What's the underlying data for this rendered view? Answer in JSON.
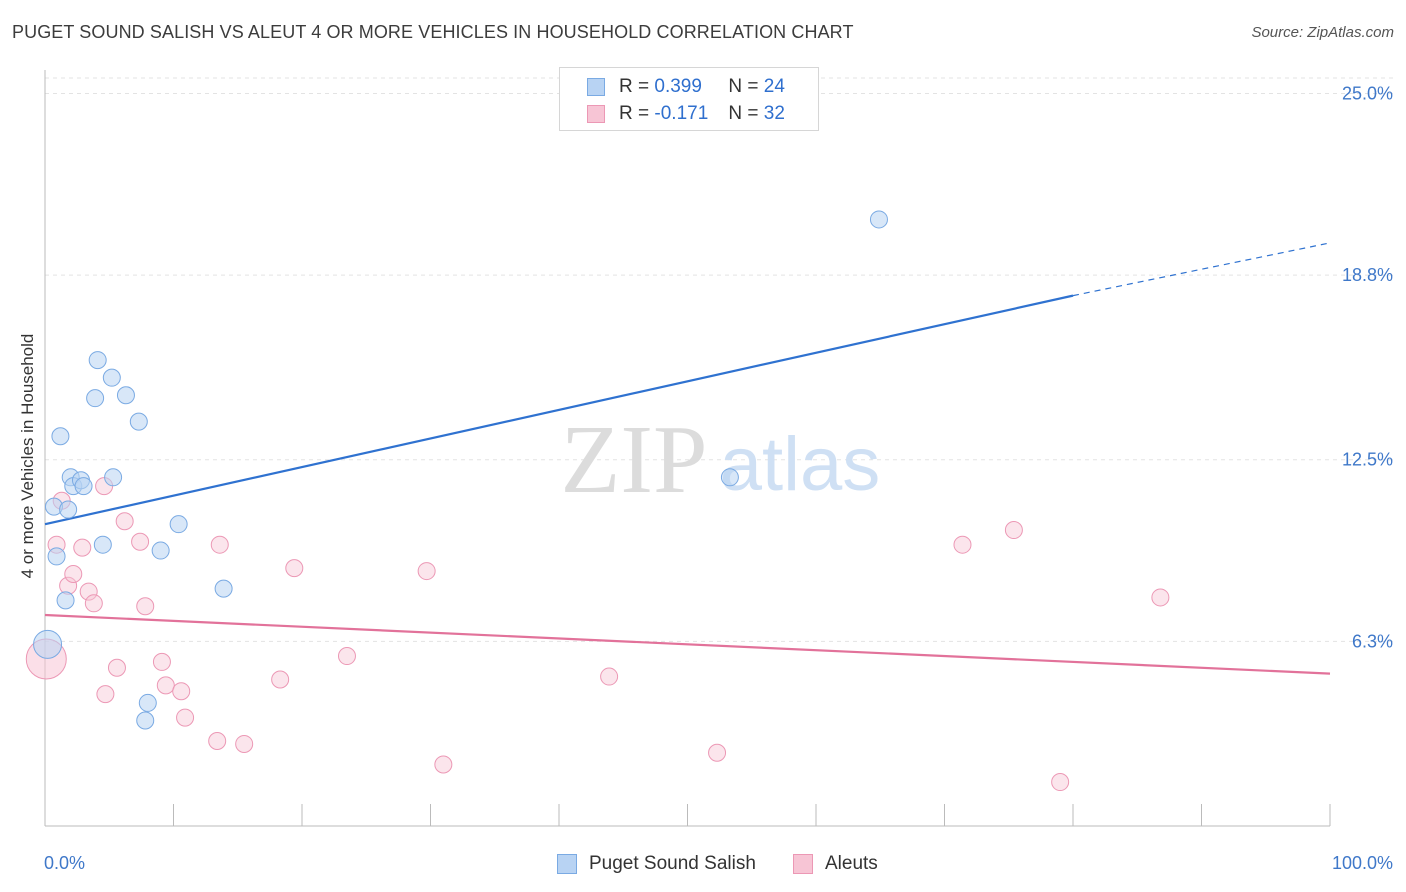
{
  "title": "PUGET SOUND SALISH VS ALEUT 4 OR MORE VEHICLES IN HOUSEHOLD CORRELATION CHART",
  "source": "Source: ZipAtlas.com",
  "watermark": {
    "zip": "ZIP",
    "atlas": "atlas"
  },
  "legend": {
    "r_label": "R =",
    "n_label": "N =",
    "series": [
      {
        "r": "0.399",
        "n": "24"
      },
      {
        "r": "-0.171",
        "n": "32"
      }
    ]
  },
  "colors": {
    "blue_fill": "#b8d3f3",
    "blue_stroke": "#7aaae3",
    "blue_line": "#2f72d0",
    "pink_fill": "#f7c5d5",
    "pink_stroke": "#ec98b5",
    "pink_line": "#e2729a",
    "axis_text": "#3f78c9",
    "grid": "#e3e3e3"
  },
  "chart_data": {
    "type": "scatter",
    "title": "PUGET SOUND SALISH VS ALEUT 4 OR MORE VEHICLES IN HOUSEHOLD CORRELATION CHART",
    "xlabel": "",
    "ylabel": "4 or more Vehicles in Household",
    "xlim": [
      0,
      100
    ],
    "ylim": [
      0,
      25.8
    ],
    "x_tick_labels": [
      "0.0%",
      "100.0%"
    ],
    "y_ticks": [
      6.3,
      12.5,
      18.8,
      25.0
    ],
    "y_tick_labels": [
      "6.3%",
      "12.5%",
      "18.8%",
      "25.0%"
    ],
    "grid": true,
    "legend_position": "top-center",
    "series": [
      {
        "name": "Puget Sound Salish",
        "points": [
          [
            0.2,
            6.2
          ],
          [
            0.7,
            10.9
          ],
          [
            0.9,
            9.2
          ],
          [
            1.2,
            13.3
          ],
          [
            1.6,
            7.7
          ],
          [
            1.8,
            10.8
          ],
          [
            2.0,
            11.9
          ],
          [
            2.2,
            11.6
          ],
          [
            2.8,
            11.8
          ],
          [
            3.0,
            11.6
          ],
          [
            4.1,
            15.9
          ],
          [
            3.9,
            14.6
          ],
          [
            4.5,
            9.6
          ],
          [
            5.2,
            15.3
          ],
          [
            5.3,
            11.9
          ],
          [
            6.3,
            14.7
          ],
          [
            7.3,
            13.8
          ],
          [
            7.8,
            3.6
          ],
          [
            8.0,
            4.2
          ],
          [
            9.0,
            9.4
          ],
          [
            10.4,
            10.3
          ],
          [
            13.9,
            8.1
          ],
          [
            53.3,
            11.9
          ],
          [
            64.9,
            20.7
          ]
        ],
        "trend": {
          "x0": 0,
          "y0": 10.3,
          "x1": 80,
          "y1": 18.1,
          "dashed_to_x": 100,
          "dashed_to_y": 19.9
        }
      },
      {
        "name": "Aleuts",
        "points": [
          [
            0.1,
            5.7
          ],
          [
            0.9,
            9.6
          ],
          [
            1.3,
            11.1
          ],
          [
            1.8,
            8.2
          ],
          [
            2.2,
            8.6
          ],
          [
            2.9,
            9.5
          ],
          [
            3.4,
            8.0
          ],
          [
            3.8,
            7.6
          ],
          [
            4.6,
            11.6
          ],
          [
            4.7,
            4.5
          ],
          [
            5.6,
            5.4
          ],
          [
            6.2,
            10.4
          ],
          [
            7.4,
            9.7
          ],
          [
            7.8,
            7.5
          ],
          [
            9.1,
            5.6
          ],
          [
            9.4,
            4.8
          ],
          [
            10.6,
            4.6
          ],
          [
            10.9,
            3.7
          ],
          [
            13.4,
            2.9
          ],
          [
            13.6,
            9.6
          ],
          [
            15.5,
            2.8
          ],
          [
            18.3,
            5.0
          ],
          [
            19.4,
            8.8
          ],
          [
            23.5,
            5.8
          ],
          [
            29.7,
            8.7
          ],
          [
            31.0,
            2.1
          ],
          [
            43.9,
            5.1
          ],
          [
            52.3,
            2.5
          ],
          [
            71.4,
            9.6
          ],
          [
            75.4,
            10.1
          ],
          [
            79.0,
            1.5
          ],
          [
            86.8,
            7.8
          ]
        ],
        "trend": {
          "x0": 0,
          "y0": 7.2,
          "x1": 100,
          "y1": 5.2
        }
      }
    ]
  }
}
